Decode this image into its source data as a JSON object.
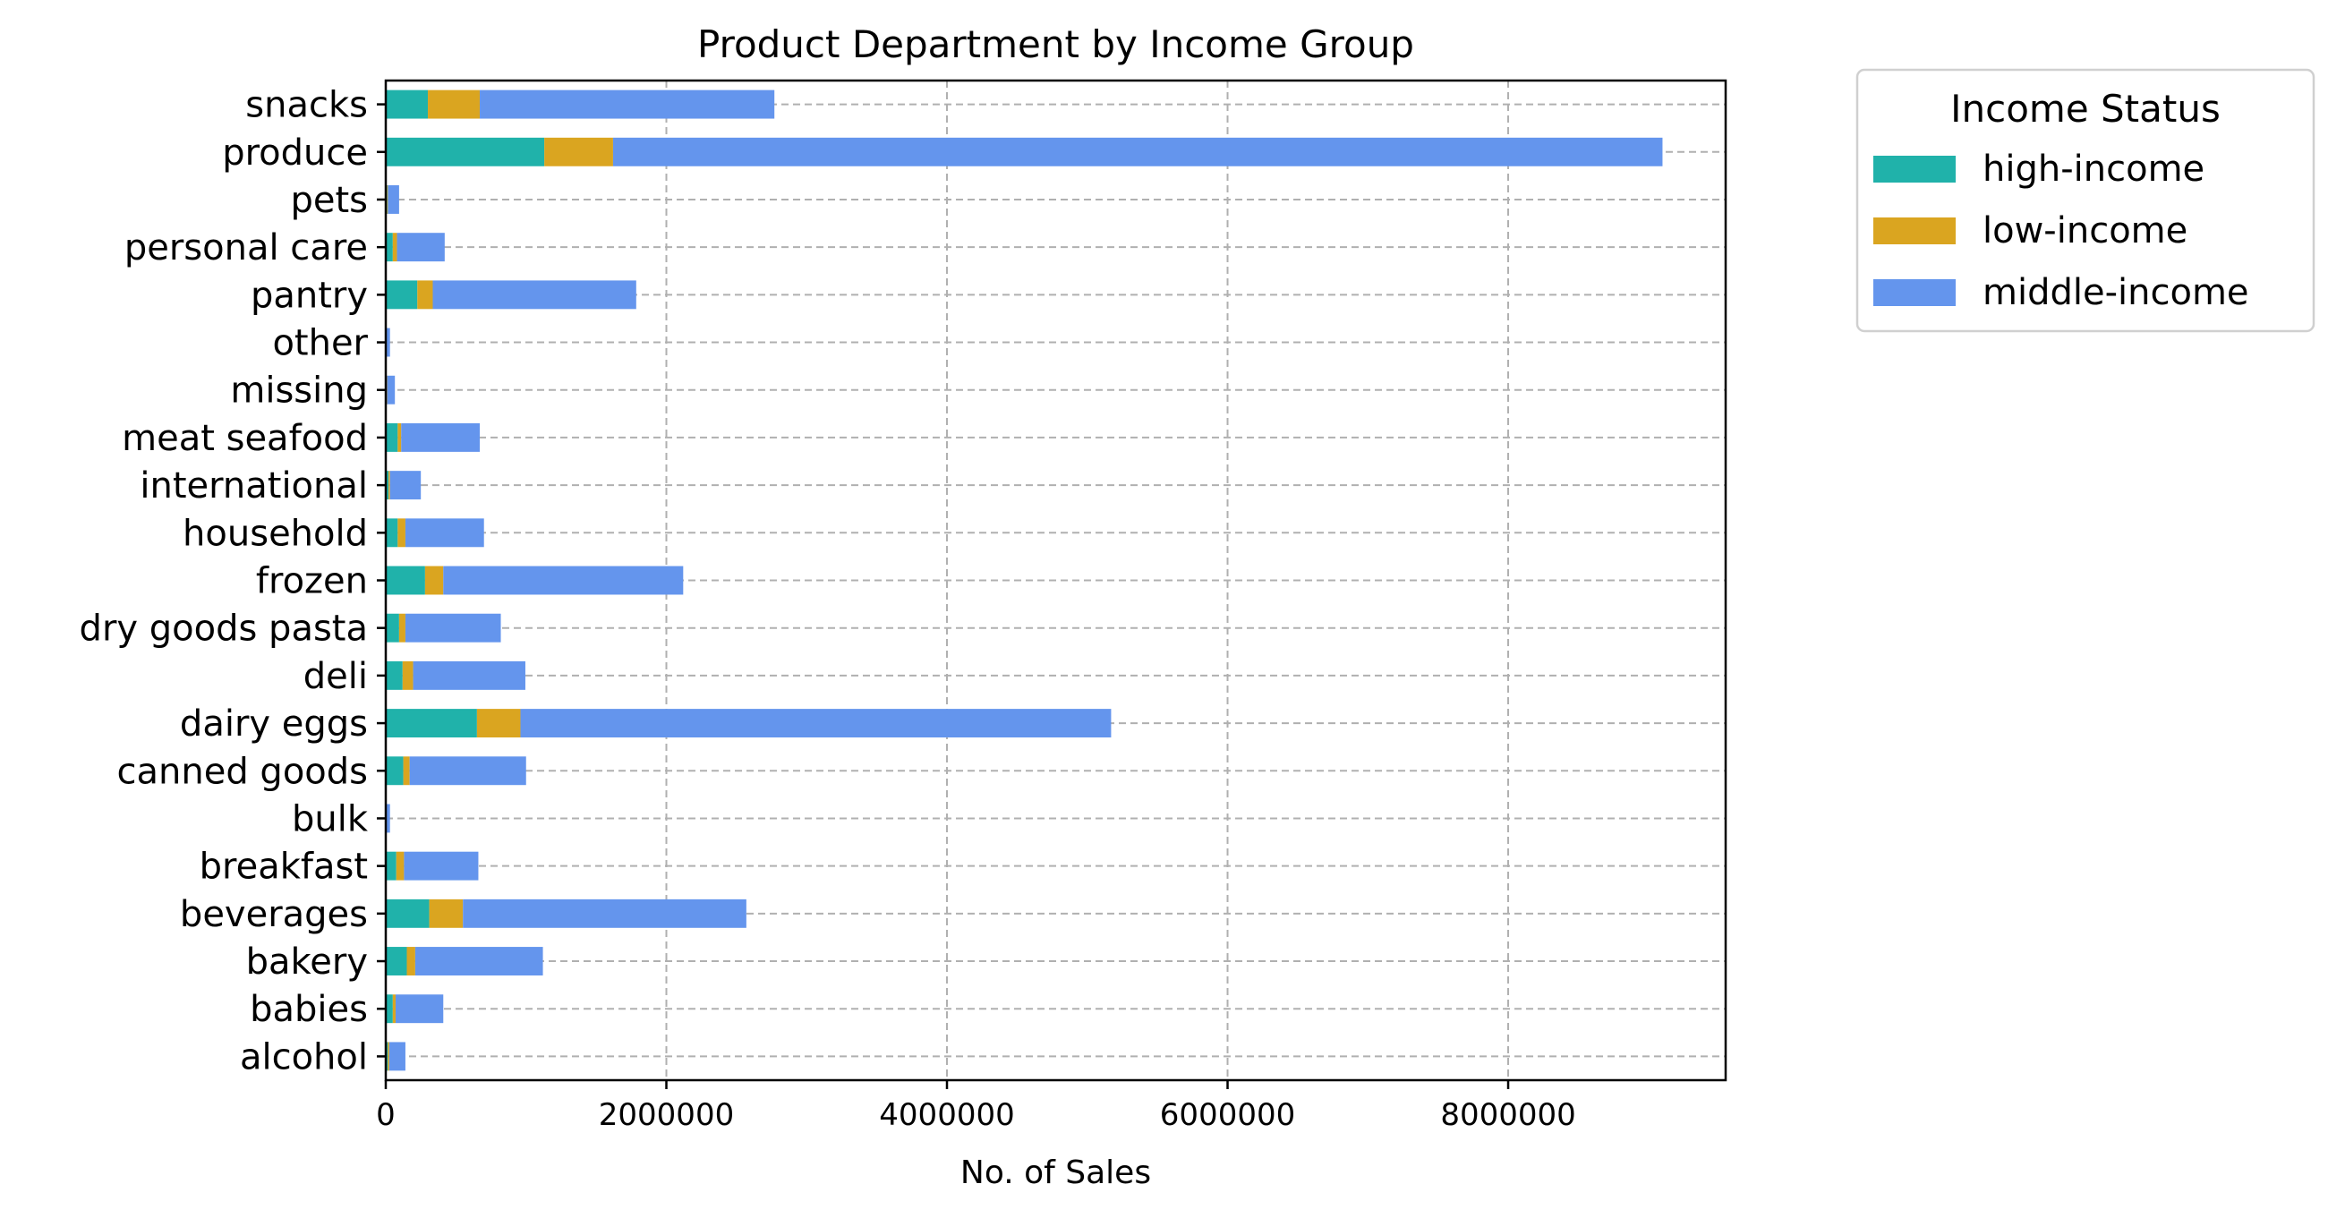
{
  "chart_data": {
    "type": "bar",
    "orientation": "horizontal",
    "stacked": true,
    "title": "Product Department by Income Group",
    "xlabel": "No. of Sales",
    "ylabel": "",
    "xlim": [
      0,
      9550000
    ],
    "xticks": [
      0,
      2000000,
      4000000,
      6000000,
      8000000
    ],
    "xtick_labels": [
      "0",
      "2000000",
      "4000000",
      "6000000",
      "8000000"
    ],
    "grid": true,
    "legend": {
      "title": "Income Status",
      "placement": "outside-top-right"
    },
    "categories": [
      "alcohol",
      "babies",
      "bakery",
      "beverages",
      "breakfast",
      "bulk",
      "canned goods",
      "dairy eggs",
      "deli",
      "dry goods pasta",
      "frozen",
      "household",
      "international",
      "meat seafood",
      "missing",
      "other",
      "pantry",
      "personal care",
      "pets",
      "produce",
      "snacks"
    ],
    "series": [
      {
        "name": "high-income",
        "color": "#20b2aa",
        "values": [
          15000,
          50000,
          150000,
          310000,
          75000,
          3000,
          125000,
          650000,
          120000,
          95000,
          280000,
          85000,
          20000,
          85000,
          5000,
          3000,
          225000,
          50000,
          10000,
          1130000,
          300000
        ]
      },
      {
        "name": "low-income",
        "color": "#daa520",
        "values": [
          10000,
          20000,
          60000,
          240000,
          55000,
          2000,
          45000,
          310000,
          75000,
          45000,
          130000,
          55000,
          10000,
          25000,
          5000,
          2000,
          110000,
          30000,
          5000,
          490000,
          370000
        ]
      },
      {
        "name": "middle-income",
        "color": "#6495ed",
        "values": [
          115000,
          340000,
          910000,
          2020000,
          530000,
          25000,
          830000,
          4210000,
          800000,
          680000,
          1710000,
          560000,
          220000,
          560000,
          55000,
          25000,
          1450000,
          340000,
          80000,
          7480000,
          2100000
        ]
      }
    ]
  }
}
